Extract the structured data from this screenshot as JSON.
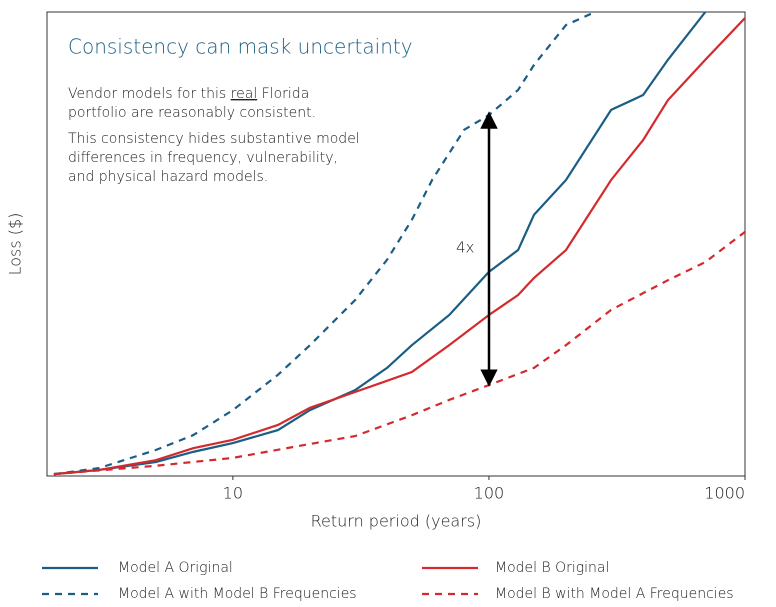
{
  "chart_data": {
    "type": "line",
    "title": "Consistency can mask uncertainty",
    "notes": [
      [
        "Vendor models for this ",
        "real",
        " Florida"
      ],
      [
        "portfolio are reasonably consistent."
      ],
      [
        "This consistency hides substantive model"
      ],
      [
        "differences in frequency, vulnerability,"
      ],
      [
        "and physical hazard models."
      ]
    ],
    "arrow_label": "4x",
    "x_label": "Return period (years)",
    "y_label": "Loss ($)",
    "log_x": true,
    "xlim": [
      1.88,
      1000
    ],
    "xticks": [
      10,
      100,
      1000
    ],
    "ylim": [
      0,
      100
    ],
    "series": [
      {
        "name": "Model A Original",
        "color": "#1a5e85",
        "dash": false,
        "x": [
          2,
          3,
          5,
          7,
          10,
          15,
          20,
          30,
          40,
          50,
          70,
          100,
          130,
          150,
          200,
          300,
          400,
          500,
          700
        ],
        "values": [
          0.4,
          1.3,
          3.0,
          5.2,
          7.1,
          9.9,
          14.2,
          18.5,
          23.3,
          28.2,
          34.7,
          44.0,
          48.7,
          56.3,
          63.8,
          78.9,
          82.1,
          89.7,
          100
        ]
      },
      {
        "name": "Model B Original",
        "color": "#d42a2e",
        "dash": false,
        "x": [
          2,
          3,
          5,
          7,
          10,
          15,
          20,
          30,
          50,
          70,
          100,
          130,
          150,
          200,
          300,
          400,
          500,
          700,
          1000
        ],
        "values": [
          0.4,
          1.3,
          3.4,
          6.0,
          7.8,
          11.0,
          14.7,
          18.1,
          22.4,
          28.2,
          34.7,
          39.0,
          42.7,
          48.7,
          63.8,
          72.4,
          81.0,
          89.7,
          98.7
        ]
      },
      {
        "name": "Model A with Model B Frequencies",
        "color": "#1a5e85",
        "dash": true,
        "x": [
          2,
          3,
          5,
          7,
          10,
          15,
          20,
          30,
          40,
          50,
          60,
          80,
          100,
          130,
          150,
          200,
          260
        ],
        "values": [
          0.4,
          1.7,
          5.6,
          8.8,
          14.2,
          21.8,
          28.2,
          37.9,
          46.6,
          55.2,
          63.8,
          74.6,
          77.8,
          83.2,
          88.6,
          97.2,
          100
        ]
      },
      {
        "name": "Model B with Model A Frequencies",
        "color": "#d42a2e",
        "dash": true,
        "x": [
          2,
          5,
          10,
          20,
          30,
          50,
          70,
          100,
          150,
          200,
          300,
          500,
          700,
          1000
        ],
        "values": [
          0.4,
          2.2,
          3.9,
          6.9,
          8.6,
          13.1,
          16.4,
          19.6,
          23.3,
          28.2,
          35.8,
          42.2,
          46.1,
          52.6
        ]
      }
    ]
  }
}
